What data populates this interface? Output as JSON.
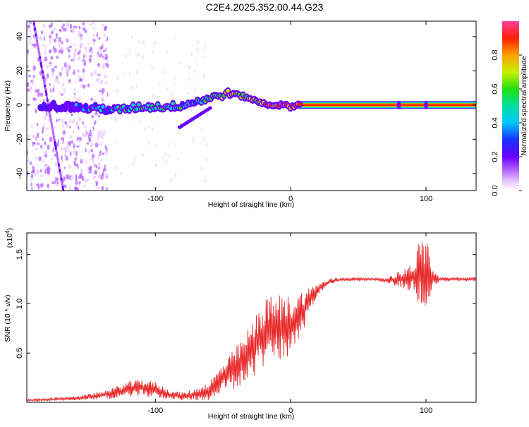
{
  "title": "C2E4.2025.352.00.44.G23",
  "colors": {
    "snr_line": "#e8282a",
    "frame": "#000000",
    "background": "#ffffff"
  },
  "chart_data": [
    {
      "type": "heatmap",
      "title": "C2E4.2025.352.00.44.G23",
      "xlabel": "Height of straight line (km)",
      "ylabel": "Frequency (Hz)",
      "xlim": [
        -195,
        137
      ],
      "ylim": [
        -50,
        49
      ],
      "x_ticks": [
        -100,
        0,
        100
      ],
      "y_ticks": [
        -40,
        -20,
        0,
        20,
        40
      ],
      "x_tick_labels": [
        "-100",
        "0",
        "100"
      ],
      "y_tick_labels": [
        "-40",
        "-20",
        "0",
        "20",
        "40"
      ],
      "colorbar": {
        "label": "Normalized spectral amplitude",
        "range": [
          0,
          1
        ],
        "ticks": [
          0.0,
          0.2,
          0.4,
          0.6,
          0.8
        ],
        "tick_labels": [
          "0.0",
          "0.2",
          "0.4",
          "0.6",
          "0.8"
        ]
      },
      "ridge": {
        "x": [
          -180,
          -170,
          -160,
          -150,
          -140,
          -130,
          -120,
          -110,
          -100,
          -90,
          -80,
          -70,
          -60,
          -50,
          -45,
          -40,
          -35,
          -30,
          -25,
          -20,
          -15,
          -10,
          -5,
          0,
          5,
          10,
          137
        ],
        "freq": [
          0,
          -1,
          -1,
          -2,
          -2,
          -3,
          -2,
          -1,
          -1,
          -1,
          0,
          2,
          4,
          6,
          7,
          6,
          5,
          4,
          2,
          1,
          0,
          0,
          0,
          -1,
          0,
          1,
          0
        ],
        "amp": [
          0.25,
          0.3,
          0.35,
          0.4,
          0.4,
          0.45,
          0.5,
          0.5,
          0.55,
          0.5,
          0.5,
          0.5,
          0.55,
          0.7,
          0.8,
          0.75,
          0.7,
          0.7,
          0.75,
          0.8,
          0.85,
          0.9,
          0.9,
          0.85,
          0.9,
          0.95,
          0.95
        ]
      },
      "steady_band": {
        "x_start": 5,
        "x_end": 137,
        "freq": 0,
        "amp": 0.95
      }
    },
    {
      "type": "line",
      "title": "",
      "xlabel": "Height of straight line (km)",
      "ylabel": "SNR (10 * v/v)",
      "y_multiplier_label": "(x10",
      "y_multiplier_exp": "4",
      "xlim": [
        -195,
        137
      ],
      "ylim": [
        0,
        1.72
      ],
      "x_ticks": [
        -100,
        0,
        100
      ],
      "y_ticks": [
        0.5,
        1.0,
        1.5
      ],
      "x_tick_labels": [
        "-100",
        "0",
        "100"
      ],
      "y_tick_labels": [
        "0.5",
        "1.0",
        "1.5"
      ],
      "series": [
        {
          "name": "SNR",
          "x": [
            -195,
            -160,
            -140,
            -130,
            -120,
            -110,
            -100,
            -90,
            -80,
            -70,
            -60,
            -50,
            -40,
            -30,
            -20,
            -10,
            0,
            10,
            20,
            30,
            40,
            50,
            60,
            70,
            80,
            90,
            95,
            100,
            105,
            110,
            120,
            137
          ],
          "y": [
            0.02,
            0.04,
            0.07,
            0.1,
            0.13,
            0.15,
            0.13,
            0.08,
            0.06,
            0.08,
            0.12,
            0.25,
            0.35,
            0.5,
            0.7,
            0.75,
            0.78,
            0.95,
            1.15,
            1.23,
            1.25,
            1.25,
            1.25,
            1.24,
            1.25,
            1.27,
            1.3,
            1.3,
            1.26,
            1.25,
            1.25,
            1.25
          ],
          "spread": [
            0.01,
            0.02,
            0.04,
            0.06,
            0.08,
            0.09,
            0.08,
            0.05,
            0.04,
            0.06,
            0.1,
            0.15,
            0.22,
            0.28,
            0.35,
            0.35,
            0.3,
            0.2,
            0.06,
            0.03,
            0.02,
            0.02,
            0.02,
            0.02,
            0.08,
            0.15,
            0.35,
            0.45,
            0.1,
            0.02,
            0.02,
            0.02
          ]
        }
      ]
    }
  ]
}
